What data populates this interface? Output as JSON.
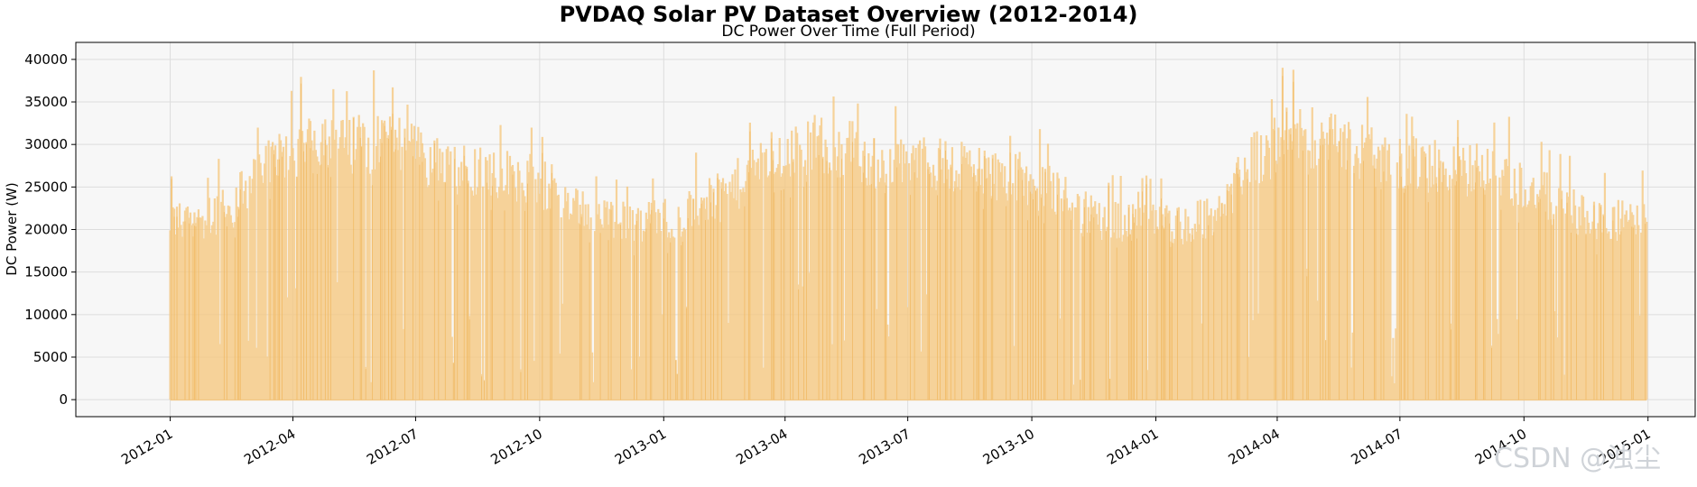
{
  "chart_data": {
    "type": "area",
    "title": "PVDAQ Solar PV Dataset Overview (2012-2014)",
    "subtitle": "DC Power Over Time (Full Period)",
    "xlabel": "",
    "ylabel": "DC Power (W)",
    "xlim": [
      "2011-10-23",
      "2015-02-05"
    ],
    "ylim": [
      -2000,
      42000
    ],
    "grid": true,
    "yticks": [
      0,
      5000,
      10000,
      15000,
      20000,
      25000,
      30000,
      35000,
      40000
    ],
    "ytick_labels": [
      "0",
      "5000",
      "10000",
      "15000",
      "20000",
      "25000",
      "30000",
      "35000",
      "40000"
    ],
    "xticks": [
      "2012-01-01",
      "2012-04-01",
      "2012-07-01",
      "2012-10-01",
      "2013-01-01",
      "2013-04-01",
      "2013-07-01",
      "2013-10-01",
      "2014-01-01",
      "2014-04-01",
      "2014-07-01",
      "2014-10-01",
      "2015-01-01"
    ],
    "xtick_labels": [
      "2012-01",
      "2012-04",
      "2012-07",
      "2012-10",
      "2013-01",
      "2013-04",
      "2013-07",
      "2013-10",
      "2014-01",
      "2014-04",
      "2014-07",
      "2014-10",
      "2015-01"
    ],
    "series": [
      {
        "name": "DC Power",
        "color": "#f5c57a",
        "x_start": "2012-01-01",
        "x_end": "2014-12-31",
        "monthly_x": [
          "2012-01-15",
          "2012-02-15",
          "2012-03-15",
          "2012-04-15",
          "2012-05-15",
          "2012-06-15",
          "2012-07-15",
          "2012-08-15",
          "2012-09-15",
          "2012-10-15",
          "2012-11-15",
          "2012-12-15",
          "2013-01-15",
          "2013-02-15",
          "2013-03-15",
          "2013-04-15",
          "2013-05-15",
          "2013-06-15",
          "2013-07-15",
          "2013-08-15",
          "2013-09-15",
          "2013-10-15",
          "2013-11-15",
          "2013-12-15",
          "2014-01-15",
          "2014-02-15",
          "2014-03-15",
          "2014-04-15",
          "2014-05-15",
          "2014-06-15",
          "2014-07-15",
          "2014-08-15",
          "2014-09-15",
          "2014-10-15",
          "2014-11-15",
          "2014-12-15"
        ],
        "monthly_peak": [
          23500,
          25500,
          31000,
          35000,
          34000,
          34000,
          31000,
          30500,
          29500,
          27500,
          24000,
          23500,
          24500,
          27000,
          31000,
          33500,
          33500,
          31000,
          31000,
          30500,
          29500,
          28000,
          24000,
          23000,
          23000,
          24000,
          32000,
          35000,
          34500,
          32000,
          31000,
          30500,
          29500,
          27000,
          24000,
          23500
        ]
      }
    ]
  },
  "watermark": "CSDN @浊尘"
}
